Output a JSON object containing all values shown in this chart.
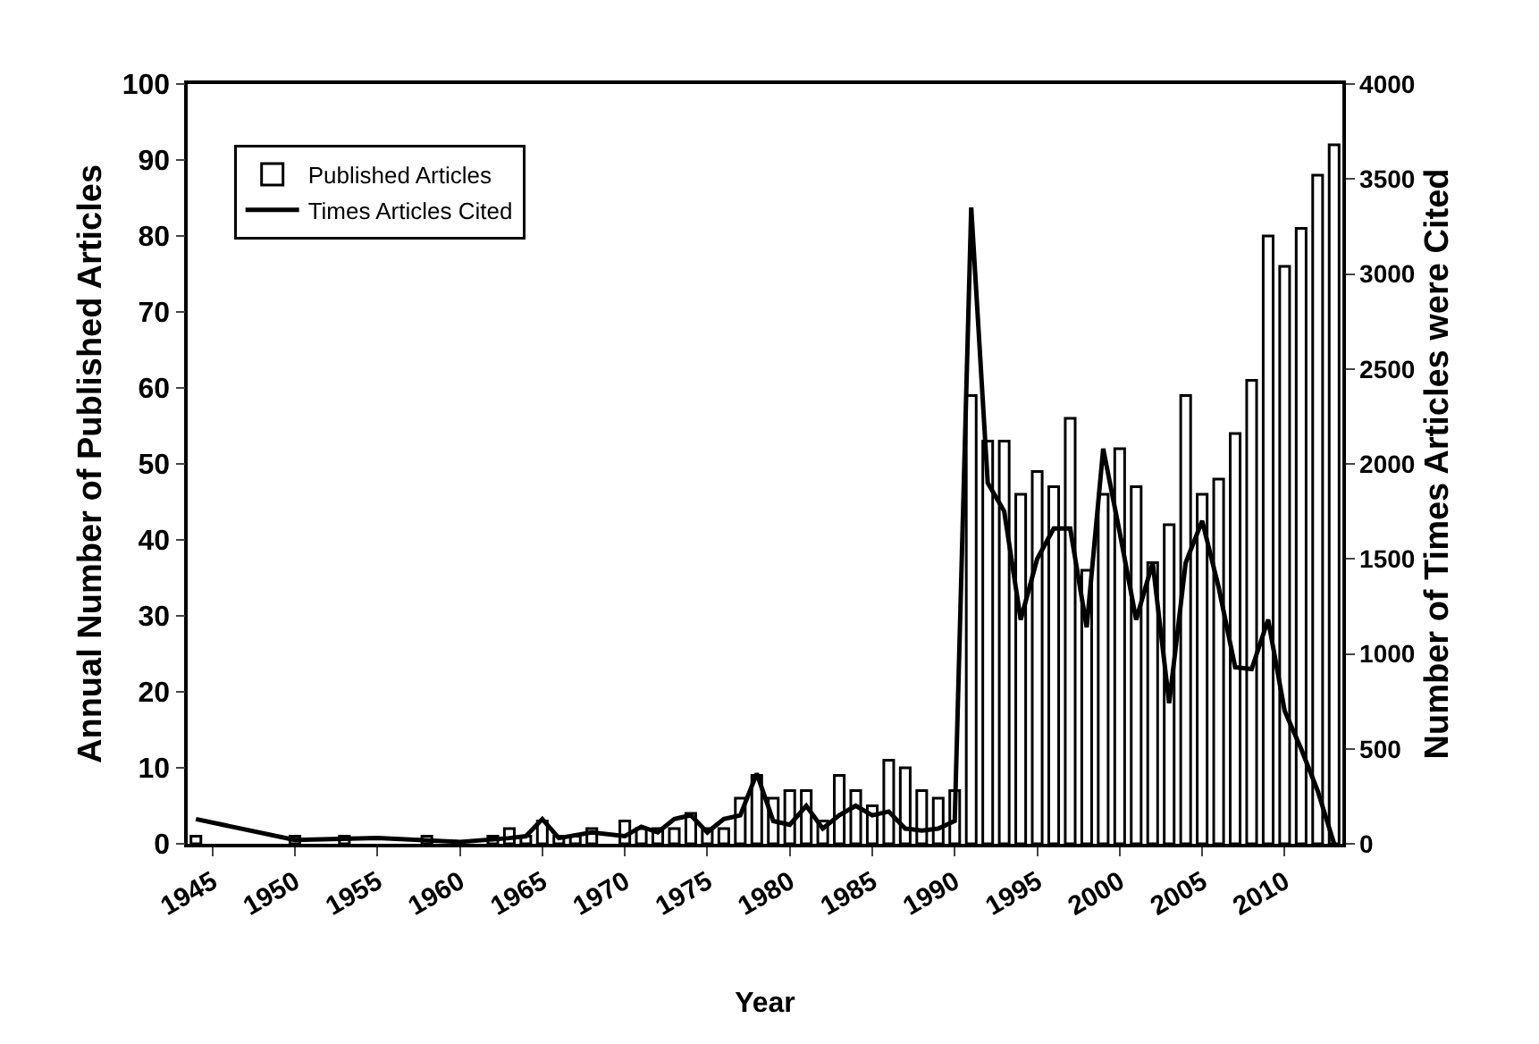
{
  "chart_data": {
    "type": "bar",
    "xlabel": "Year",
    "ylabel": "Annual Number of Published Articles",
    "y2label": "Number of Times Articles were Cited",
    "x": [
      1944,
      1945,
      1946,
      1947,
      1948,
      1949,
      1950,
      1951,
      1952,
      1953,
      1954,
      1955,
      1956,
      1957,
      1958,
      1959,
      1960,
      1961,
      1962,
      1963,
      1964,
      1965,
      1966,
      1967,
      1968,
      1969,
      1970,
      1971,
      1972,
      1973,
      1974,
      1975,
      1976,
      1977,
      1978,
      1979,
      1980,
      1981,
      1982,
      1983,
      1984,
      1985,
      1986,
      1987,
      1988,
      1989,
      1990,
      1991,
      1992,
      1993,
      1994,
      1995,
      1996,
      1997,
      1998,
      1999,
      2000,
      2001,
      2002,
      2003,
      2004,
      2005,
      2006,
      2007,
      2008,
      2009,
      2010,
      2011,
      2012,
      2013
    ],
    "series": [
      {
        "name": "Published Articles",
        "color": "#ffffff",
        "values": [
          1,
          0,
          0,
          0,
          0,
          0,
          1,
          0,
          0,
          1,
          0,
          0,
          0,
          0,
          1,
          0,
          0,
          0,
          1,
          2,
          1,
          3,
          1,
          1,
          2,
          0,
          3,
          2,
          2,
          2,
          4,
          2,
          2,
          6,
          9,
          6,
          7,
          7,
          3,
          9,
          7,
          5,
          11,
          10,
          7,
          6,
          7,
          59,
          53,
          53,
          46,
          49,
          47,
          56,
          36,
          46,
          52,
          47,
          37,
          42,
          59,
          46,
          48,
          54,
          61,
          80,
          76,
          81,
          88,
          92
        ]
      },
      {
        "name": "Times Articles Cited",
        "type": "line",
        "axis": "y2",
        "color": "#000000",
        "x": [
          1944,
          1950,
          1955,
          1960,
          1963,
          1964,
          1965,
          1966,
          1968,
          1970,
          1971,
          1972,
          1973,
          1974,
          1975,
          1976,
          1977,
          1978,
          1979,
          1980,
          1981,
          1982,
          1983,
          1984,
          1985,
          1986,
          1987,
          1988,
          1989,
          1990,
          1991,
          1992,
          1993,
          1994,
          1995,
          1996,
          1997,
          1998,
          1999,
          2000,
          2001,
          2002,
          2003,
          2004,
          2005,
          2006,
          2007,
          2008,
          2009,
          2010,
          2011,
          2012,
          2013
        ],
        "values": [
          130,
          20,
          30,
          10,
          30,
          40,
          130,
          30,
          60,
          40,
          90,
          60,
          130,
          150,
          60,
          130,
          150,
          370,
          120,
          100,
          200,
          80,
          150,
          200,
          150,
          170,
          80,
          70,
          80,
          120,
          3350,
          1900,
          1750,
          1180,
          1500,
          1660,
          1660,
          1140,
          2080,
          1640,
          1180,
          1480,
          740,
          1480,
          1700,
          1350,
          930,
          920,
          1180,
          700,
          500,
          280,
          0
        ]
      }
    ],
    "xlim": [
      1943.5,
      2013.5
    ],
    "xticks": [
      1945,
      1950,
      1955,
      1960,
      1965,
      1970,
      1975,
      1980,
      1985,
      1990,
      1995,
      2000,
      2005,
      2010
    ],
    "ylim": [
      0,
      100
    ],
    "yticks": [
      0,
      10,
      20,
      30,
      40,
      50,
      60,
      70,
      80,
      90,
      100
    ],
    "y2lim": [
      0,
      4000
    ],
    "y2ticks": [
      0,
      500,
      1000,
      1500,
      2000,
      2500,
      3000,
      3500,
      4000
    ],
    "grid": false,
    "legend": "top left",
    "marker": "none",
    "line_style": "solid"
  }
}
